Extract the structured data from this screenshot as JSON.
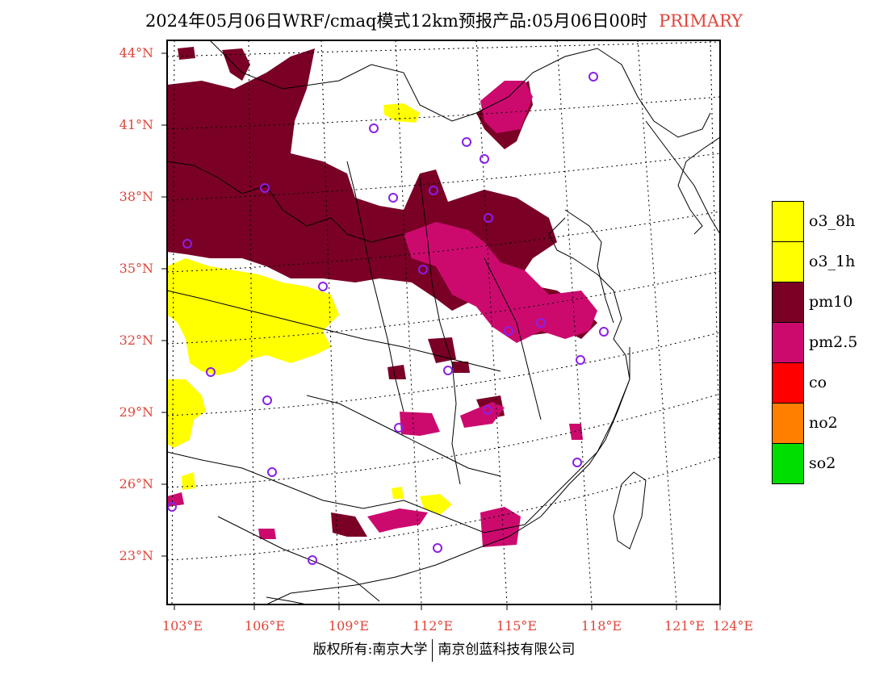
{
  "header": {
    "title": "2024年05月06日WRF/cmaq模式12km预报产品:05月06日00时",
    "tag": "PRIMARY",
    "tag_color": "#e0453a"
  },
  "axes": {
    "lat_labels": [
      "44°N",
      "41°N",
      "38°N",
      "35°N",
      "32°N",
      "29°N",
      "26°N",
      "23°N"
    ],
    "lon_labels": [
      "103°E",
      "106°E",
      "109°E",
      "112°E",
      "115°E",
      "118°E",
      "121°E",
      "124°E"
    ],
    "label_color": "#e0453a"
  },
  "legend": {
    "items": [
      {
        "label": "o3_8h",
        "color": "#ffff00"
      },
      {
        "label": "o3_1h",
        "color": "#ffff00"
      },
      {
        "label": "pm10",
        "color": "#7a0026"
      },
      {
        "label": "pm2.5",
        "color": "#cc0a6e"
      },
      {
        "label": "co",
        "color": "#ff0000"
      },
      {
        "label": "no2",
        "color": "#ff7f00"
      },
      {
        "label": "so2",
        "color": "#00dd00"
      }
    ]
  },
  "footer": {
    "copyright": "版权所有:南京大学",
    "company": "南京创蓝科技有限公司"
  }
}
